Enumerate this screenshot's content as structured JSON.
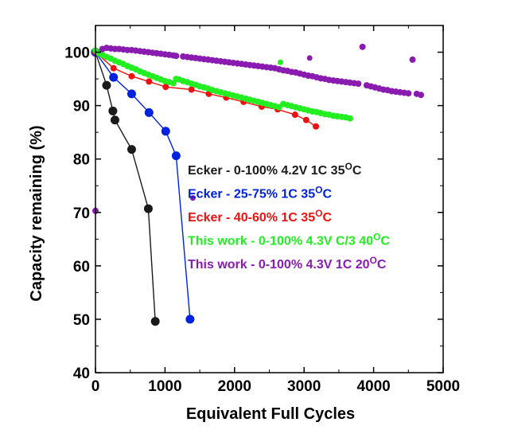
{
  "chart_data": {
    "type": "scatter",
    "xlabel": "Equivalent Full Cycles",
    "ylabel": "Capacity remaining (%)",
    "xlim": [
      0,
      5000
    ],
    "ylim": [
      40,
      105
    ],
    "x_ticks": [
      0,
      1000,
      2000,
      3000,
      4000,
      5000
    ],
    "y_ticks": [
      40,
      50,
      60,
      70,
      80,
      90,
      100
    ],
    "grid": false,
    "legend_position": "center-right",
    "series": [
      {
        "name": "Ecker - 0-100% 4.2V 1C 35",
        "name_sup": "O",
        "name_tail": "C",
        "color": "#1a1a1a",
        "marker": "large-circle",
        "connected": true,
        "x": [
          0,
          160,
          250,
          280,
          520,
          760,
          860
        ],
        "y": [
          100,
          93.8,
          89,
          87.3,
          81.8,
          70.7,
          49.6
        ]
      },
      {
        "name": "Ecker - 25-75% 1C 35",
        "name_sup": "O",
        "name_tail": "C",
        "color": "#0022dd",
        "marker": "large-circle",
        "connected": true,
        "x": [
          0,
          260,
          520,
          770,
          1010,
          1160,
          1360
        ],
        "y": [
          100,
          95.3,
          92.2,
          88.7,
          85.2,
          80.6,
          50
        ]
      },
      {
        "name": "Ecker - 40-60% 1C 35",
        "name_sup": "O",
        "name_tail": "C",
        "color": "#ee1111",
        "marker": "circle",
        "connected": true,
        "x": [
          0,
          260,
          520,
          770,
          1010,
          1380,
          1630,
          1880,
          2130,
          2390,
          2620,
          2870,
          3030,
          3170
        ],
        "y": [
          100,
          97,
          95.5,
          94.5,
          93.5,
          93,
          92.2,
          91.5,
          90.7,
          89.8,
          89.3,
          88.3,
          87.3,
          86.1
        ]
      },
      {
        "name": "This work - 0-100% 4.3V C/3 40",
        "name_sup": "O",
        "name_tail": "C",
        "color": "#22ee22",
        "marker": "circle",
        "connected": false,
        "x": [
          0,
          50,
          100,
          160,
          220,
          280,
          340,
          400,
          460,
          520,
          580,
          640,
          700,
          760,
          820,
          880,
          940,
          1000,
          1060,
          1120,
          1160,
          1200,
          1260,
          1320,
          1380,
          1440,
          1500,
          1560,
          1620,
          1680,
          1740,
          1800,
          1860,
          1920,
          1980,
          2040,
          2100,
          2160,
          2220,
          2280,
          2340,
          2400,
          2460,
          2520,
          2580,
          2640,
          2700,
          2760,
          2820,
          2880,
          2940,
          3000,
          3060,
          3120,
          3180,
          3240,
          3300,
          3360,
          3420,
          3480,
          3540,
          3600,
          3660
        ],
        "y": [
          100.3,
          99.8,
          99.5,
          99.1,
          98.8,
          98.4,
          98.1,
          97.8,
          97.4,
          97.1,
          96.8,
          96.4,
          96.1,
          95.8,
          95.5,
          95.2,
          94.9,
          94.6,
          94.4,
          94.2,
          95,
          94.9,
          94.6,
          94.4,
          94.1,
          93.9,
          93.6,
          93.4,
          93.2,
          92.9,
          92.7,
          92.5,
          92.3,
          92.1,
          91.9,
          91.7,
          91.5,
          91.3,
          91.1,
          90.9,
          90.7,
          90.5,
          90.3,
          90.1,
          89.9,
          89.7,
          90.3,
          90.1,
          89.9,
          89.7,
          89.5,
          89.3,
          89.1,
          88.9,
          88.8,
          88.6,
          88.4,
          88.3,
          88.1,
          88,
          87.9,
          87.8,
          87.6
        ]
      },
      {
        "name": "This work - 0-100% 4.3V 1C 20",
        "name_sup": "O",
        "name_tail": "C",
        "color": "#8a1bb0",
        "marker": "circle",
        "connected": false,
        "x": [
          0,
          100,
          160,
          220,
          280,
          340,
          400,
          460,
          520,
          580,
          640,
          700,
          760,
          820,
          880,
          940,
          1000,
          1060,
          1120,
          1160,
          1260,
          1320,
          1380,
          1440,
          1500,
          1560,
          1620,
          1680,
          1740,
          1800,
          1860,
          1920,
          1980,
          2040,
          2100,
          2160,
          2220,
          2280,
          2340,
          2400,
          2460,
          2520,
          2580,
          2640,
          2700,
          2760,
          2820,
          2880,
          2940,
          3000,
          3060,
          3120,
          3180,
          3240,
          3300,
          3360,
          3420,
          3480,
          3540,
          3600,
          3660,
          3720,
          3780,
          3840,
          3900,
          3960,
          4020,
          4080,
          4140,
          4200,
          4260,
          4320,
          4380,
          4440,
          4500,
          4560,
          4620,
          4680
        ],
        "y": [
          70.3,
          100.6,
          100.8,
          100.7,
          100.6,
          100.6,
          100.5,
          100.4,
          100.4,
          100.3,
          100.2,
          100.1,
          100,
          99.9,
          99.8,
          99.7,
          99.6,
          99.5,
          99.4,
          99.3,
          99.2,
          99.1,
          99,
          98.9,
          98.8,
          98.7,
          98.6,
          98.5,
          98.4,
          98.3,
          98.2,
          98.1,
          98,
          97.9,
          97.8,
          97.7,
          97.6,
          97.5,
          97.4,
          97.3,
          97.2,
          97.1,
          97,
          96.8,
          96.6,
          96.5,
          96.3,
          96.2,
          96,
          95.8,
          95.6,
          95.5,
          95.3,
          95.1,
          95,
          94.8,
          94.7,
          94.6,
          94.5,
          94.4,
          94.3,
          94.2,
          94.1,
          101,
          93.8,
          93.6,
          93.4,
          93.2,
          93,
          92.9,
          92.7,
          92.6,
          92.5,
          92.4,
          92.3,
          98.6,
          92.2,
          92
        ]
      }
    ],
    "extra_points": [
      {
        "series": "This work - 0-100% 4.3V C/3 40",
        "x": 2660,
        "y": 98.1
      },
      {
        "series": "This work - 0-100% 4.3V 1C 20",
        "x": 3080,
        "y": 98.9
      },
      {
        "series": "This work - 0-100% 4.3V 1C 20",
        "x": 4560,
        "y": 98.6
      },
      {
        "series": "This work - 0-100% 4.3V 1C 20",
        "x": 1400,
        "y": 72.7
      }
    ]
  }
}
